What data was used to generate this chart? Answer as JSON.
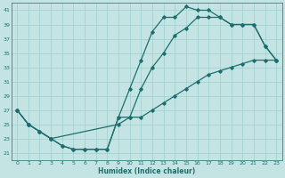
{
  "xlabel": "Humidex (Indice chaleur)",
  "bg_color": "#c4e4e4",
  "grid_color": "#9ecece",
  "line_color": "#1e6e6e",
  "xlim": [
    -0.5,
    23.5
  ],
  "ylim": [
    20.0,
    42.0
  ],
  "xticks": [
    0,
    1,
    2,
    3,
    4,
    5,
    6,
    7,
    8,
    9,
    10,
    11,
    12,
    13,
    14,
    15,
    16,
    17,
    18,
    19,
    20,
    21,
    22,
    23
  ],
  "yticks": [
    21,
    23,
    25,
    27,
    29,
    31,
    33,
    35,
    37,
    39,
    41
  ],
  "line1_x": [
    0,
    1,
    2,
    3,
    4,
    5,
    6,
    7,
    8,
    9,
    10,
    11,
    12,
    13,
    14,
    15,
    16,
    17,
    18,
    19,
    20,
    21,
    22,
    23
  ],
  "line1_y": [
    27,
    25,
    24,
    23,
    22,
    21.5,
    21.5,
    21.5,
    21.5,
    26,
    30,
    34,
    38,
    40,
    40,
    41.5,
    41,
    41,
    40,
    39,
    39,
    39,
    36,
    34
  ],
  "line2_x": [
    0,
    1,
    2,
    3,
    4,
    5,
    6,
    7,
    8,
    9,
    10,
    11,
    12,
    13,
    14,
    15,
    16,
    17,
    18,
    19,
    20,
    21,
    22,
    23
  ],
  "line2_y": [
    27,
    25,
    24,
    23,
    22,
    21.5,
    21.5,
    21.5,
    21.5,
    26,
    26,
    30,
    33,
    35,
    37.5,
    38.5,
    40,
    40,
    40,
    39,
    39,
    39,
    36,
    34
  ],
  "line3_x": [
    0,
    1,
    2,
    3,
    9,
    10,
    11,
    12,
    13,
    14,
    15,
    16,
    17,
    18,
    19,
    20,
    21,
    22,
    23
  ],
  "line3_y": [
    27,
    25,
    24,
    23,
    25,
    26,
    26,
    27,
    28,
    29,
    30,
    31,
    32,
    32.5,
    33,
    33.5,
    34,
    34,
    34
  ]
}
